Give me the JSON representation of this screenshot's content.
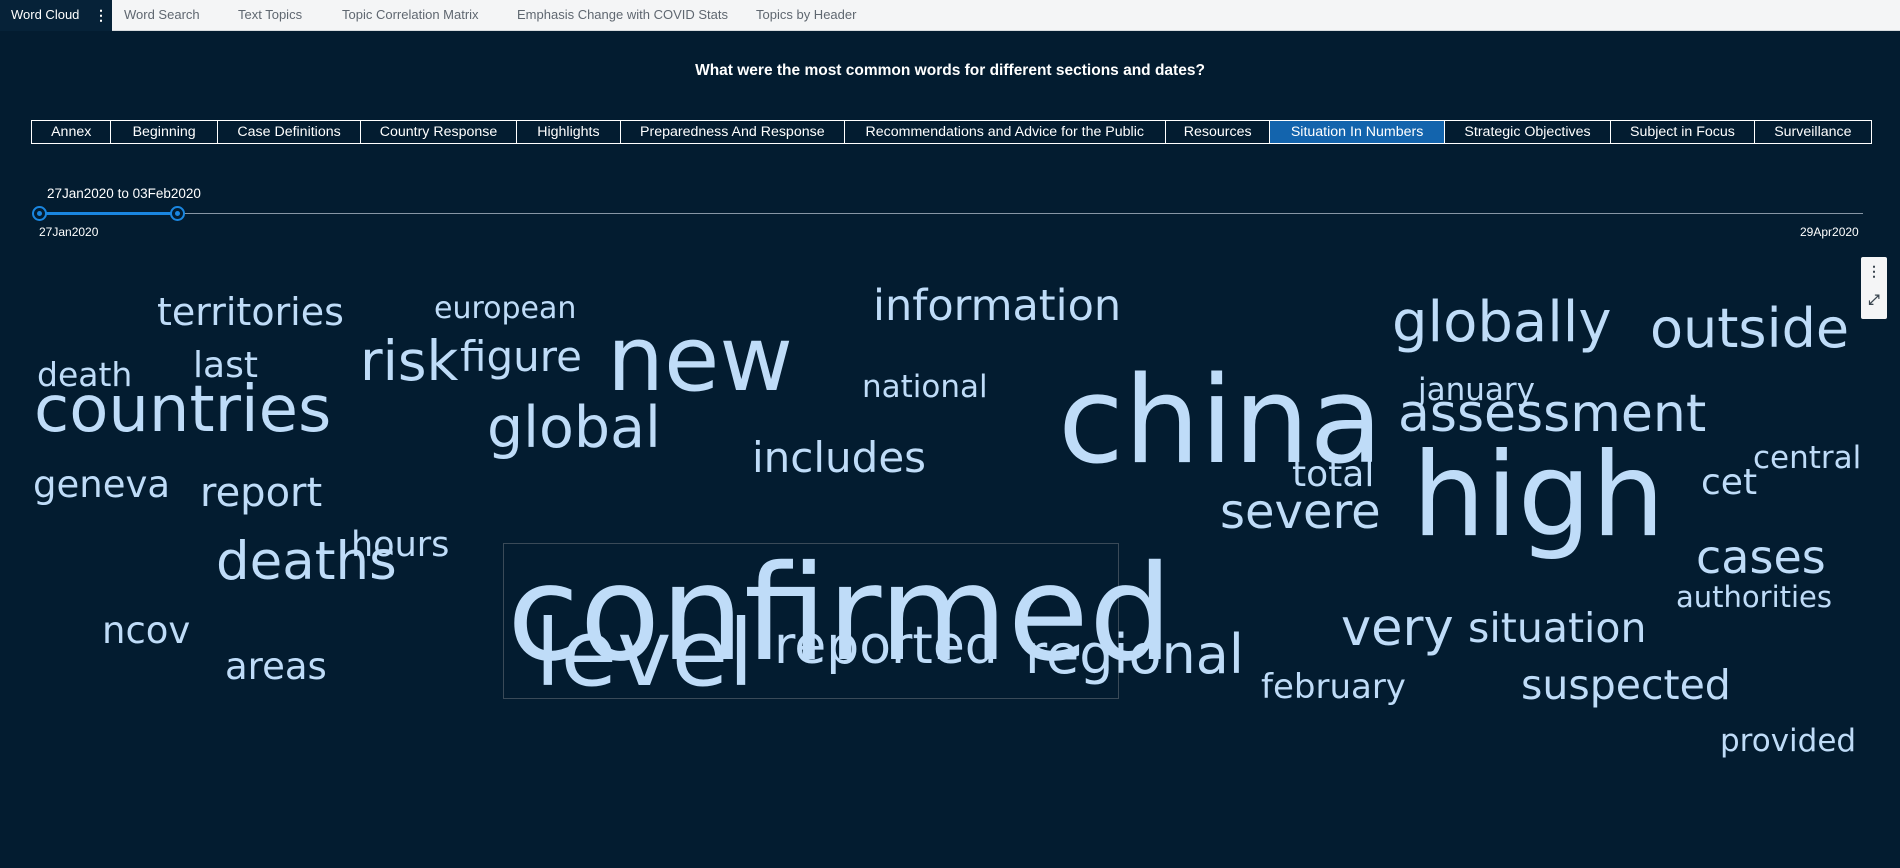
{
  "tabs": [
    {
      "label": "Word Cloud",
      "active": true
    },
    {
      "label": "Word Search"
    },
    {
      "label": "Text Topics"
    },
    {
      "label": "Topic Correlation Matrix"
    },
    {
      "label": "Emphasis Change with COVID Stats"
    },
    {
      "label": "Topics by Header"
    }
  ],
  "tab_menu_icon": "vertical-ellipsis-icon",
  "title": "What were the most common words for different sections and dates?",
  "sections": [
    {
      "label": "Annex"
    },
    {
      "label": "Beginning"
    },
    {
      "label": "Case Definitions"
    },
    {
      "label": "Country Response"
    },
    {
      "label": "Highlights"
    },
    {
      "label": "Preparedness And Response"
    },
    {
      "label": "Recommendations and Advice for the Public"
    },
    {
      "label": "Resources"
    },
    {
      "label": "Situation In Numbers",
      "selected": true
    },
    {
      "label": "Strategic Objectives"
    },
    {
      "label": "Subject in Focus"
    },
    {
      "label": "Surveillance"
    }
  ],
  "date_slider": {
    "value_text": "27Jan2020 to 03Feb2020",
    "min_label": "27Jan2020",
    "max_label": "29Apr2020",
    "accent": "#1a86e0"
  },
  "object_toolbar": {
    "menu_icon": "vertical-ellipsis-icon",
    "maximize_icon": "expand-arrows-icon"
  },
  "word_cloud": {
    "word_color": "#bfdcf8",
    "words": [
      {
        "text": "confirmed",
        "weight": 100,
        "selected": true
      },
      {
        "text": "china",
        "weight": 92
      },
      {
        "text": "high",
        "weight": 89
      },
      {
        "text": "new",
        "weight": 72
      },
      {
        "text": "level",
        "weight": 71
      },
      {
        "text": "countries",
        "weight": 57
      },
      {
        "text": "global",
        "weight": 53
      },
      {
        "text": "assessment",
        "weight": 52
      },
      {
        "text": "outside",
        "weight": 51
      },
      {
        "text": "globally",
        "weight": 51
      },
      {
        "text": "regional",
        "weight": 51
      },
      {
        "text": "reported",
        "weight": 50
      },
      {
        "text": "risk",
        "weight": 49
      },
      {
        "text": "very",
        "weight": 49
      },
      {
        "text": "deaths",
        "weight": 48
      },
      {
        "text": "severe",
        "weight": 46
      },
      {
        "text": "information",
        "weight": 44
      },
      {
        "text": "cases",
        "weight": 44
      },
      {
        "text": "figure",
        "weight": 43
      },
      {
        "text": "includes",
        "weight": 43
      },
      {
        "text": "suspected",
        "weight": 42
      },
      {
        "text": "report",
        "weight": 42
      },
      {
        "text": "situation",
        "weight": 42
      },
      {
        "text": "territories",
        "weight": 38
      },
      {
        "text": "geneva",
        "weight": 37
      },
      {
        "text": "total",
        "weight": 36
      },
      {
        "text": "cet",
        "weight": 36
      },
      {
        "text": "last",
        "weight": 35
      },
      {
        "text": "areas",
        "weight": 35
      },
      {
        "text": "ncov",
        "weight": 35
      },
      {
        "text": "death",
        "weight": 34
      },
      {
        "text": "february",
        "weight": 34
      },
      {
        "text": "hours",
        "weight": 34
      },
      {
        "text": "provided",
        "weight": 31
      },
      {
        "text": "authorities",
        "weight": 30
      },
      {
        "text": "central",
        "weight": 30
      },
      {
        "text": "national",
        "weight": 30
      },
      {
        "text": "january",
        "weight": 30
      },
      {
        "text": "european",
        "weight": 30
      }
    ]
  }
}
